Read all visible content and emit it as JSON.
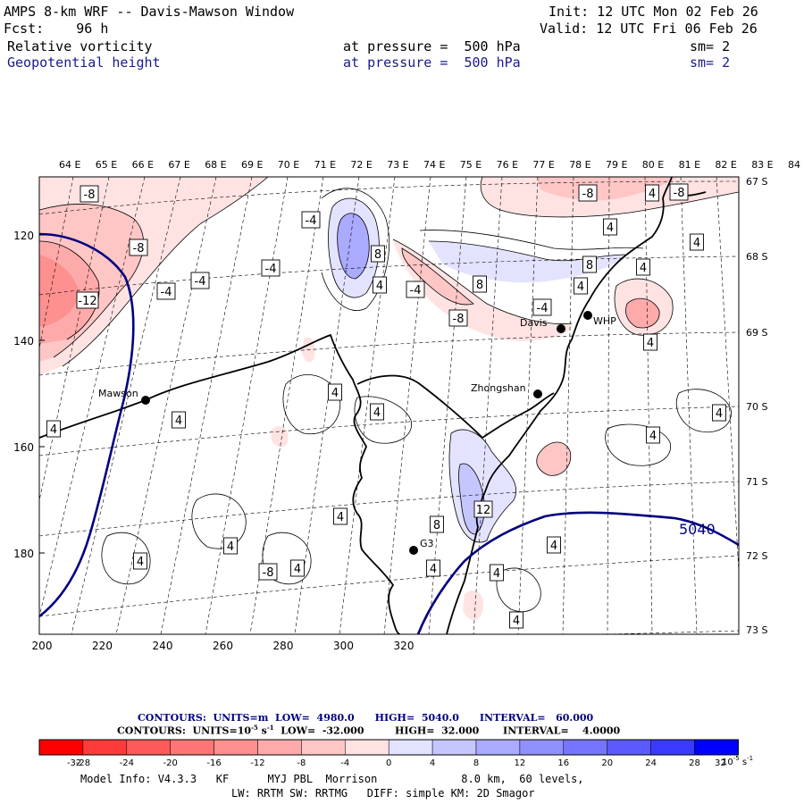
{
  "header": {
    "title": "AMPS 8-km WRF -- Davis-Mawson Window",
    "init": "Init: 12 UTC Mon 02 Feb 26",
    "fcst": "Fcst:    96 h",
    "valid": "Valid: 12 UTC Fri 06 Feb 26",
    "field1": {
      "name": "Relative vorticity",
      "level": "at pressure =  500 hPa",
      "smooth": "sm= 2"
    },
    "field2": {
      "name": "Geopotential height",
      "level": "at pressure =  500 hPa",
      "smooth": "sm= 2"
    }
  },
  "axes": {
    "top_lon": [
      "64 E",
      "65 E",
      "66 E",
      "67 E",
      "68 E",
      "69 E",
      "70 E",
      "71 E",
      "72 E",
      "73 E",
      "74 E",
      "75 E",
      "76 E",
      "77 E",
      "78 E",
      "79 E",
      "80 E",
      "81 E",
      "82 E",
      "83 E",
      "84 E"
    ],
    "right_lat": [
      "67 S",
      "68 S",
      "69 S",
      "70 S",
      "71 S",
      "72 S",
      "73 S"
    ],
    "bottom_x": [
      "200",
      "220",
      "240",
      "260",
      "280",
      "300",
      "320"
    ],
    "left_y": [
      "120",
      "140",
      "160",
      "180"
    ]
  },
  "stations": [
    "Mawson",
    "Davis",
    "WHP",
    "Zhongshan",
    "G3"
  ],
  "contour_labels": {
    "vorticity": [
      "-8",
      "-8",
      "-4",
      "-8",
      "-12",
      "-4",
      "-4",
      "-4",
      "8",
      "-4",
      "4",
      "-8",
      "8",
      "-8",
      "-4",
      "4",
      "4",
      "8",
      "4",
      "4",
      "4",
      "4",
      "4",
      "4",
      "4",
      "4",
      "4",
      "12",
      "8",
      "4",
      "4",
      "4",
      "4",
      "4",
      "4",
      "4",
      "-8",
      "4",
      "4"
    ],
    "height": [
      "5040"
    ]
  },
  "footer": {
    "height_contours": "CONTOURS:  UNITS=m  LOW=  4980.0      HIGH=  5040.0      INTERVAL=   60.000",
    "vort_contours": "CONTOURS:  UNITS=10",
    "vort_exp": "-5",
    "vort_unit": " s",
    "vort_unit_exp": "-1",
    "vort_rest": "  LOW=  -32.000         HIGH=  32.000       INTERVAL=    4.0000",
    "colorbar_ticks": [
      "-32",
      "-28",
      "-24",
      "-20",
      "-16",
      "-12",
      "-8",
      "-4",
      "0",
      "4",
      "8",
      "12",
      "16",
      "20",
      "24",
      "28",
      "32"
    ],
    "colorbar_unit": "10",
    "colorbar_unit_exp": "-5",
    "colorbar_unit_s": " s",
    "colorbar_unit_s_exp": "-1",
    "model_info_1": "Model Info: V4.3.3   KF      MYJ PBL  Morrison             8.0 km,  60 levels,",
    "model_info_2": "LW: RRTM SW: RRTMG   DIFF: simple KM: 2D Smagor"
  },
  "colors": {
    "neg_scale": [
      "#ff0000",
      "#ff3a3a",
      "#ff5a5a",
      "#ff7575",
      "#ff9090",
      "#ffaaaa",
      "#ffc6c6",
      "#ffe3e3"
    ],
    "pos_scale": [
      "#e3e3ff",
      "#c6c6ff",
      "#aaaaff",
      "#9090ff",
      "#7575ff",
      "#5a5aff",
      "#3a3aff",
      "#0000ff"
    ],
    "height_line": "#000080",
    "coast": "#000000"
  }
}
